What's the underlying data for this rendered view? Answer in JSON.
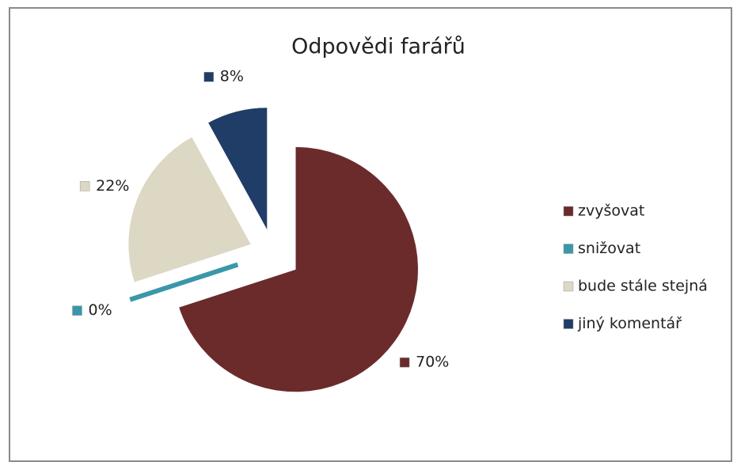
{
  "chart_data": {
    "type": "pie",
    "title": "Odpovědi farářů",
    "categories": [
      "zvyšovat",
      "snižovat",
      "bude stále stejná",
      "jiný komentář"
    ],
    "values": [
      70,
      0,
      22,
      8
    ],
    "value_labels": [
      "70%",
      "0%",
      "22%",
      "8%"
    ],
    "colors": [
      "#6b2b2b",
      "#3a97aa",
      "#ddd8c3",
      "#1f3d66"
    ],
    "legend": "right"
  }
}
